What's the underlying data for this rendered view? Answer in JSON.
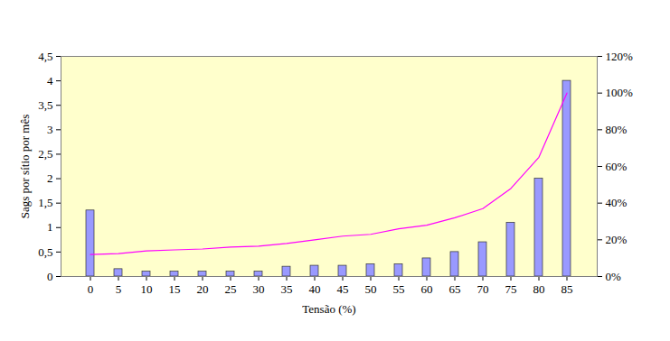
{
  "chart_data": {
    "type": "bar",
    "x_label": "Tensão (%)",
    "y_label": "Sags por sítio por mês",
    "categories": [
      "0",
      "5",
      "10",
      "15",
      "20",
      "25",
      "30",
      "35",
      "40",
      "45",
      "50",
      "55",
      "60",
      "65",
      "70",
      "75",
      "80",
      "85"
    ],
    "series": [
      {
        "type": "bar",
        "color": "#9999ff",
        "values": [
          1.35,
          0.15,
          0.1,
          0.1,
          0.1,
          0.1,
          0.1,
          0.2,
          0.22,
          0.22,
          0.25,
          0.25,
          0.37,
          0.5,
          0.7,
          1.1,
          2.0,
          4.0
        ]
      },
      {
        "type": "line",
        "color": "#ff00ff",
        "axis": "y2",
        "values": [
          12,
          12.5,
          14,
          14.5,
          15,
          16,
          16.5,
          18,
          20,
          22,
          23,
          26,
          28,
          32,
          37,
          48,
          65,
          100
        ]
      }
    ],
    "ylim": [
      0,
      4.5
    ],
    "yticks": [
      0,
      {
        "value": 0.5,
        "label": "0,5"
      },
      1,
      {
        "value": 1.5,
        "label": "1,5"
      },
      2,
      {
        "value": 2.5,
        "label": "2,5"
      },
      3,
      {
        "value": 3.5,
        "label": "3,5"
      },
      4,
      {
        "value": 4.5,
        "label": "4,5"
      }
    ],
    "y2lim": [
      0,
      120
    ],
    "y2ticks": [
      {
        "value": 0,
        "label": "0%"
      },
      {
        "value": 20,
        "label": "20%"
      },
      {
        "value": 40,
        "label": "40%"
      },
      {
        "value": 60,
        "label": "60%"
      },
      {
        "value": 80,
        "label": "80%"
      },
      {
        "value": 100,
        "label": "100%"
      },
      {
        "value": 120,
        "label": "120%"
      }
    ],
    "grid": false
  }
}
